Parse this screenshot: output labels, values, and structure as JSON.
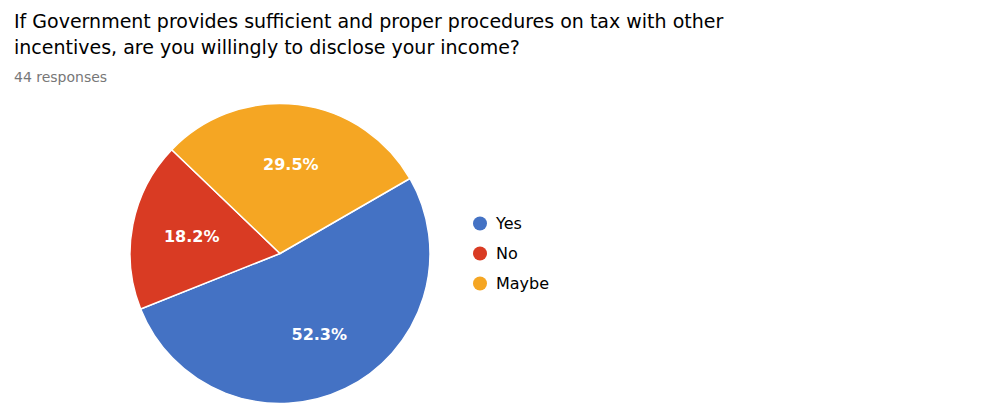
{
  "chart_data": {
    "type": "pie",
    "title": [
      "If Government provides sufficient and proper procedures on tax with other",
      "incentives, are you willingly to disclose your income?"
    ],
    "subtitle": "44 responses",
    "categories": [
      "Yes",
      "No",
      "Maybe"
    ],
    "values": [
      52.3,
      18.2,
      29.5
    ],
    "value_labels": [
      "52.3%",
      "18.2%",
      "29.5%"
    ],
    "colors": [
      "#4472C4",
      "#D93B23",
      "#F5A623"
    ],
    "data_labels": true,
    "legend": "right"
  }
}
